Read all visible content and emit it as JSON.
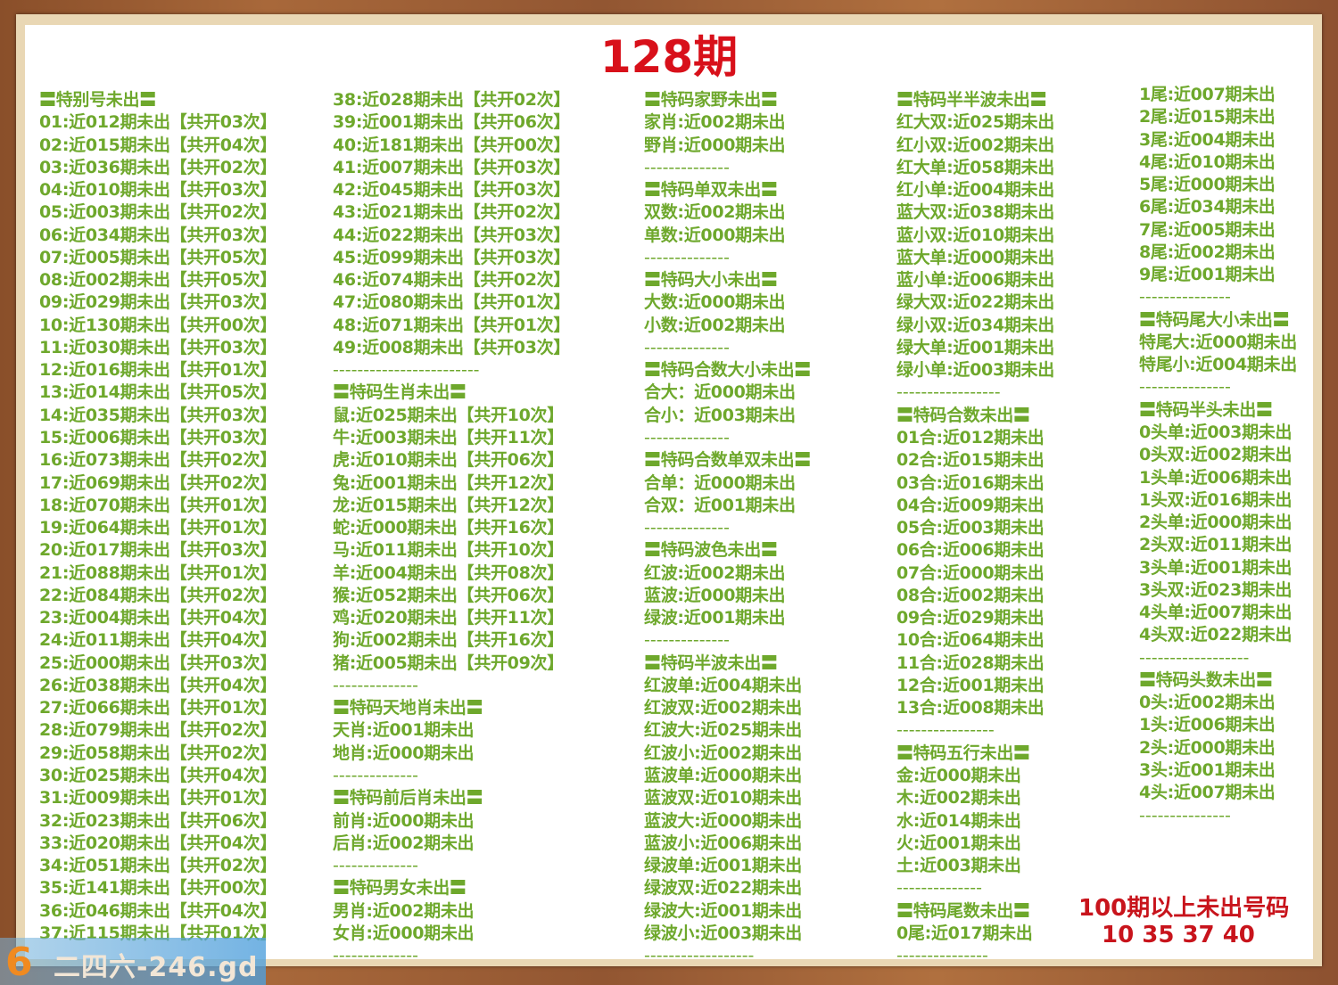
{
  "title": "128期",
  "columns": [
    [
      "〓特别号未出〓",
      "01:近012期未出【共开03次】",
      "02:近015期未出【共开04次】",
      "03:近036期未出【共开02次】",
      "04:近010期未出【共开03次】",
      "05:近003期未出【共开02次】",
      "06:近034期未出【共开03次】",
      "07:近005期未出【共开05次】",
      "08:近002期未出【共开05次】",
      "09:近029期未出【共开03次】",
      "10:近130期未出【共开00次】",
      "11:近030期未出【共开03次】",
      "12:近016期未出【共开01次】",
      "13:近014期未出【共开05次】",
      "14:近035期未出【共开03次】",
      "15:近006期未出【共开03次】",
      "16:近073期未出【共开02次】",
      "17:近069期未出【共开02次】",
      "18:近070期未出【共开01次】",
      "19:近064期未出【共开01次】",
      "20:近017期未出【共开03次】",
      "21:近088期未出【共开01次】",
      "22:近084期未出【共开02次】",
      "23:近004期未出【共开04次】",
      "24:近011期未出【共开04次】",
      "25:近000期未出【共开03次】",
      "26:近038期未出【共开04次】",
      "27:近066期未出【共开01次】",
      "28:近079期未出【共开02次】",
      "29:近058期未出【共开02次】",
      "30:近025期未出【共开04次】",
      "31:近009期未出【共开01次】",
      "32:近023期未出【共开06次】",
      "33:近020期未出【共开04次】",
      "34:近051期未出【共开02次】",
      "35:近141期未出【共开00次】",
      "36:近046期未出【共开04次】",
      "37:近115期未出【共开01次】"
    ],
    [
      "38:近028期未出【共开02次】",
      "39:近001期未出【共开06次】",
      "40:近181期未出【共开00次】",
      "41:近007期未出【共开03次】",
      "42:近045期未出【共开03次】",
      "43:近021期未出【共开02次】",
      "44:近022期未出【共开03次】",
      "45:近099期未出【共开03次】",
      "46:近074期未出【共开02次】",
      "47:近080期未出【共开01次】",
      "48:近071期未出【共开01次】",
      "49:近008期未出【共开03次】",
      "------------------------",
      "〓特码生肖未出〓",
      "鼠:近025期未出【共开10次】",
      "牛:近003期未出【共开11次】",
      "虎:近010期未出【共开06次】",
      "兔:近001期未出【共开12次】",
      "龙:近015期未出【共开12次】",
      "蛇:近000期未出【共开16次】",
      "马:近011期未出【共开10次】",
      "羊:近004期未出【共开08次】",
      "猴:近052期未出【共开06次】",
      "鸡:近020期未出【共开11次】",
      "狗:近002期未出【共开16次】",
      "猪:近005期未出【共开09次】",
      "--------------",
      "〓特码天地肖未出〓",
      "天肖:近001期未出",
      "地肖:近000期未出",
      "--------------",
      "〓特码前后肖未出〓",
      "前肖:近000期未出",
      "后肖:近002期未出",
      "--------------",
      "〓特码男女未出〓",
      "男肖:近002期未出",
      "女肖:近000期未出",
      "--------------"
    ],
    [
      "〓特码家野未出〓",
      "家肖:近002期未出",
      "野肖:近000期未出",
      "--------------",
      "〓特码单双未出〓",
      "双数:近002期未出",
      "单数:近000期未出",
      "--------------",
      "〓特码大小未出〓",
      "大数:近000期未出",
      "小数:近002期未出",
      "--------------",
      "〓特码合数大小未出〓",
      "合大：近000期未出",
      "合小：近003期未出",
      "--------------",
      "〓特码合数单双未出〓",
      "合单：近000期未出",
      "合双：近001期未出",
      "--------------",
      "〓特码波色未出〓",
      "红波:近002期未出",
      "蓝波:近000期未出",
      "绿波:近001期未出",
      "--------------",
      "〓特码半波未出〓",
      "红波单:近004期未出",
      "红波双:近002期未出",
      "红波大:近025期未出",
      "红波小:近002期未出",
      "蓝波单:近000期未出",
      "蓝波双:近010期未出",
      "蓝波大:近000期未出",
      "蓝波小:近006期未出",
      "绿波单:近001期未出",
      "绿波双:近022期未出",
      "绿波大:近001期未出",
      "绿波小:近003期未出",
      "------------------"
    ],
    [
      "〓特码半半波未出〓",
      "红大双:近025期未出",
      "红小双:近002期未出",
      "红大单:近058期未出",
      "红小单:近004期未出",
      "蓝大双:近038期未出",
      "蓝小双:近010期未出",
      "蓝大单:近000期未出",
      "蓝小单:近006期未出",
      "绿大双:近022期未出",
      "绿小双:近034期未出",
      "绿大单:近001期未出",
      "绿小单:近003期未出",
      "-----------------",
      "〓特码合数未出〓",
      "01合:近012期未出",
      "02合:近015期未出",
      "03合:近016期未出",
      "04合:近009期未出",
      "05合:近003期未出",
      "06合:近006期未出",
      "07合:近000期未出",
      "08合:近002期未出",
      "09合:近029期未出",
      "10合:近064期未出",
      "11合:近028期未出",
      "12合:近001期未出",
      "13合:近008期未出",
      "----------------",
      "〓特码五行未出〓",
      "金:近000期未出",
      "木:近002期未出",
      "水:近014期未出",
      "火:近001期未出",
      "土:近003期未出",
      "--------------",
      "〓特码尾数未出〓",
      "0尾:近017期未出",
      "---------------"
    ],
    [
      "1尾:近007期未出",
      "2尾:近015期未出",
      "3尾:近004期未出",
      "4尾:近010期未出",
      "5尾:近000期未出",
      "6尾:近034期未出",
      "7尾:近005期未出",
      "8尾:近002期未出",
      "9尾:近001期未出",
      "---------------",
      "〓特码尾大小未出〓",
      "特尾大:近000期未出",
      "特尾小:近004期未出",
      "---------------",
      "〓特码半头未出〓",
      "0头单:近003期未出",
      "0头双:近002期未出",
      "1头单:近006期未出",
      "1头双:近016期未出",
      "2头单:近000期未出",
      "2头双:近011期未出",
      "3头单:近001期未出",
      "3头双:近023期未出",
      "4头单:近007期未出",
      "4头双:近022期未出",
      "------------------",
      "〓特码头数未出〓",
      "0头:近002期未出",
      "1头:近006期未出",
      "2头:近000期未出",
      "3头:近001期未出",
      "4头:近007期未出",
      "---------------"
    ]
  ],
  "over_100": {
    "label": "100期以上未出号码",
    "numbers": "10 35 37 40"
  },
  "watermark": {
    "logo": "6",
    "text": "二四六-246.gd"
  },
  "colors": {
    "text_green": "#6ea82c",
    "title_red": "#d8101a",
    "frame_wood": "#9a5a32"
  }
}
